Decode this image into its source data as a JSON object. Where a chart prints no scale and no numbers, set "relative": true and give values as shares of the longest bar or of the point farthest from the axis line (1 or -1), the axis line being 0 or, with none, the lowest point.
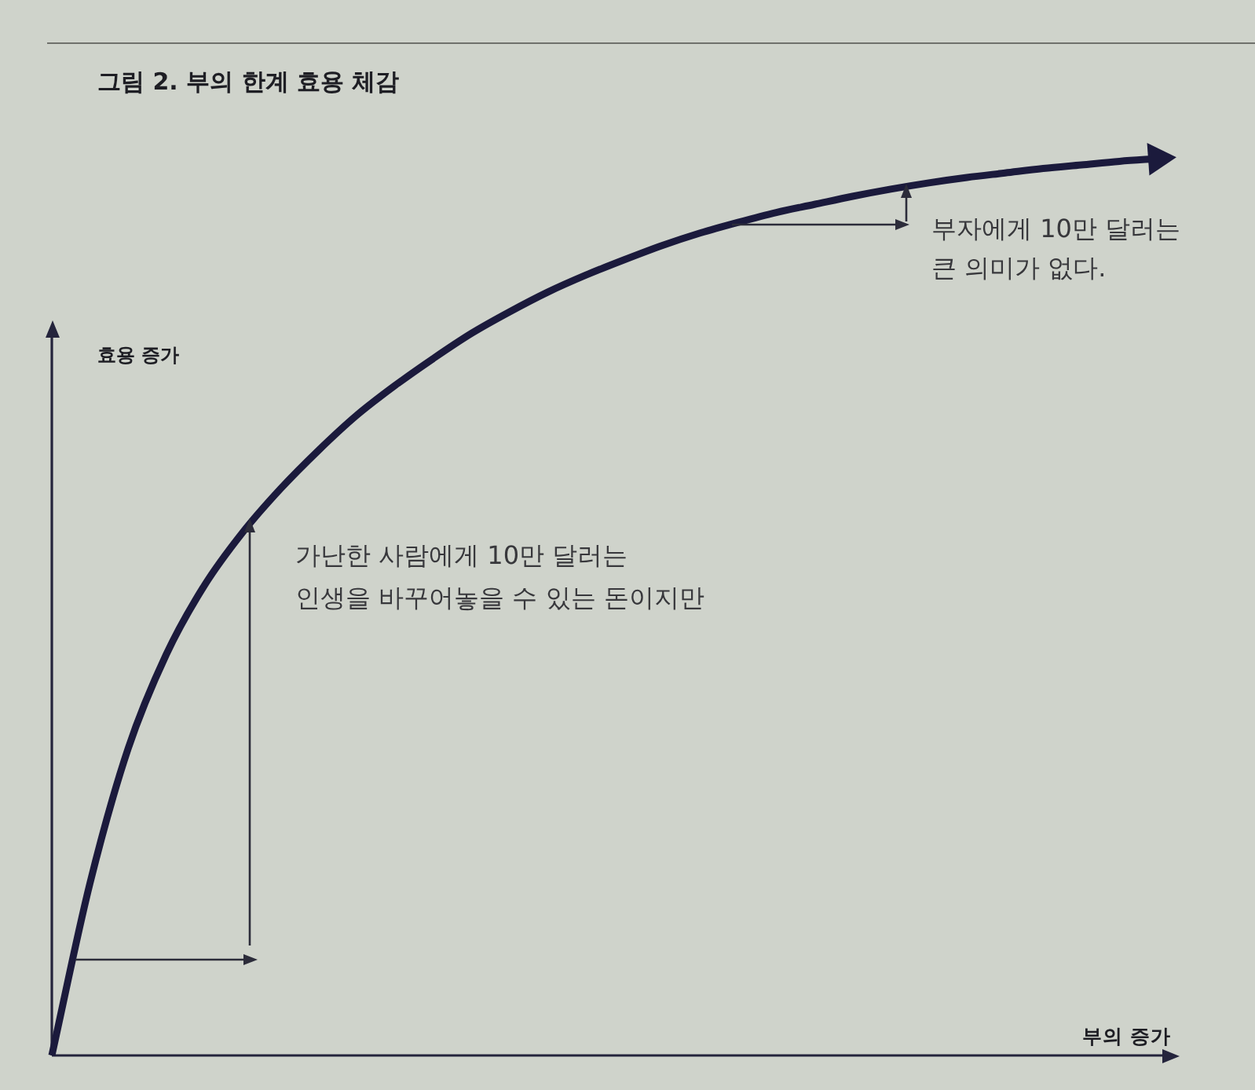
{
  "chart_data": {
    "type": "line",
    "title": "그림 2. 부의 한계 효용 체감",
    "xlabel": "부의 증가",
    "ylabel": "효용 증가",
    "annotations": [
      "가난한 사람에게 10만 달러는\n인생을 바꾸어놓을 수 있는 돈이지만",
      "부자에게 10만 달러는\n큰 의미가 없다."
    ],
    "categories": [
      null,
      null,
      null,
      null,
      null,
      null,
      null,
      null,
      null,
      null,
      null,
      null,
      null,
      null,
      null,
      null,
      null,
      null,
      null,
      null,
      null,
      null,
      null,
      null,
      null,
      null,
      null,
      null,
      null,
      null
    ],
    "values": [
      0,
      0.192,
      0.342,
      0.447,
      0.524,
      0.583,
      0.632,
      0.675,
      0.714,
      0.747,
      0.777,
      0.805,
      0.829,
      0.851,
      0.87,
      0.887,
      0.903,
      0.917,
      0.929,
      0.94,
      0.949,
      0.958,
      0.966,
      0.973,
      0.979,
      0.984,
      0.989,
      0.993,
      0.997,
      1
    ],
    "color": "#1b1a3c",
    "relative": true
  }
}
